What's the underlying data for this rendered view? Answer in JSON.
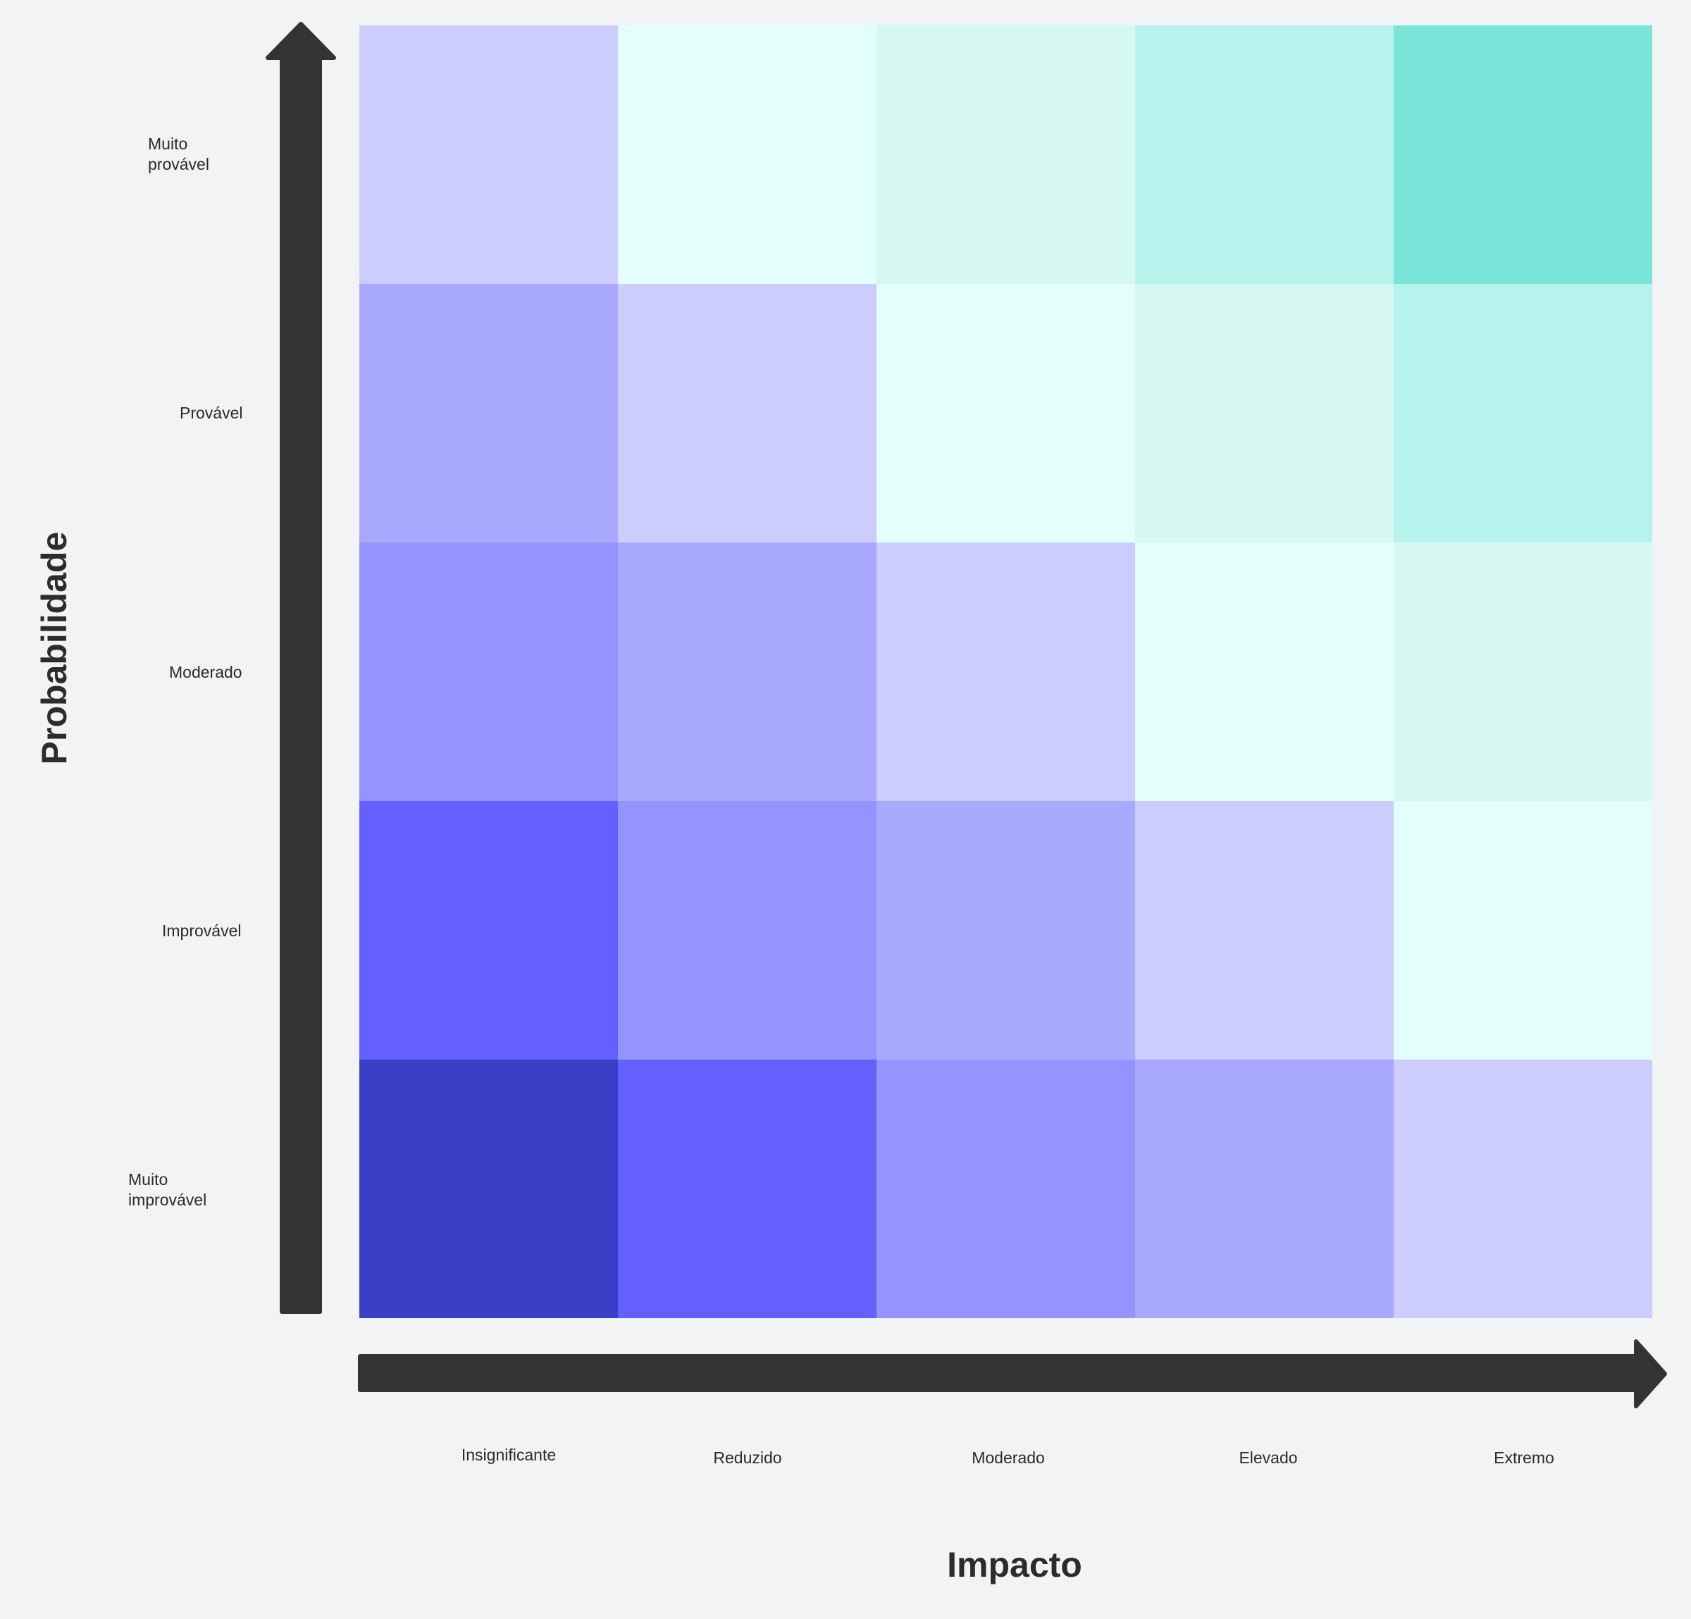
{
  "diagram": {
    "y_axis_title": "Probabilidade",
    "x_axis_title": "Impacto",
    "rows": [
      {
        "label": "Muito\nprovável",
        "colors": [
          "#ccccff",
          "#e3fffb",
          "#d6f8f2",
          "#b6f3ec",
          "#79e5d8"
        ]
      },
      {
        "label": "Provável",
        "colors": [
          "#a8a8ff",
          "#ccccff",
          "#e3fffb",
          "#d6f8f2",
          "#b6f3ec"
        ]
      },
      {
        "label": "Moderado",
        "colors": [
          "#9494ff",
          "#a8a8ff",
          "#ccccff",
          "#e3fffb",
          "#d6f8f2"
        ]
      },
      {
        "label": "Improvável",
        "colors": [
          "#6360ff",
          "#9494ff",
          "#a8a8ff",
          "#ccccff",
          "#e3fffb"
        ]
      },
      {
        "label": "Muito\nimprovável",
        "colors": [
          "#3b3ec7",
          "#6360ff",
          "#9494ff",
          "#a8a8ff",
          "#ccccff"
        ]
      }
    ],
    "columns": [
      "Insignificante",
      "Reduzido",
      "Moderado",
      "Elevado",
      "Extremo"
    ],
    "arrow_color": "#333333"
  }
}
